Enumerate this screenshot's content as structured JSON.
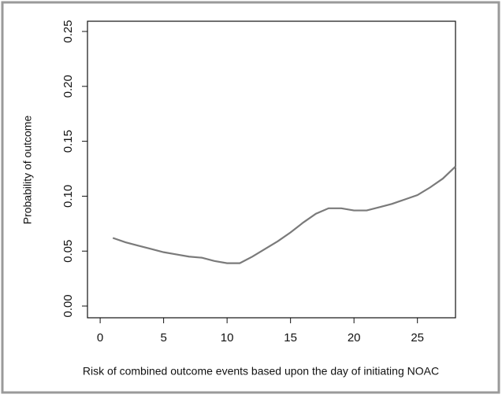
{
  "chart_data": {
    "type": "line",
    "x_label": "Risk of combined outcome events based upon the day of initiating NOAC",
    "y_label": "Probability of outcome",
    "x": [
      1,
      2,
      3,
      4,
      5,
      6,
      7,
      8,
      9,
      10,
      11,
      12,
      13,
      14,
      15,
      16,
      17,
      18,
      19,
      20,
      21,
      22,
      23,
      24,
      25,
      26,
      27,
      28
    ],
    "series": [
      {
        "color": "#7a7a7a",
        "values": [
          0.062,
          0.058,
          0.055,
          0.052,
          0.049,
          0.047,
          0.045,
          0.044,
          0.041,
          0.039,
          0.039,
          0.045,
          0.052,
          0.059,
          0.067,
          0.076,
          0.084,
          0.089,
          0.089,
          0.087,
          0.087,
          0.09,
          0.093,
          0.097,
          0.101,
          0.108,
          0.116,
          0.127
        ]
      }
    ],
    "xlim": [
      -1,
      28
    ],
    "xticks": [
      0,
      5,
      10,
      15,
      20,
      25
    ],
    "ylim": [
      -0.0107,
      0.2593
    ],
    "yticks": [
      {
        "value": 0,
        "label": "0.00"
      },
      0.05,
      {
        "value": 0.1,
        "label": "0.10"
      },
      0.15,
      {
        "value": 0.2,
        "label": "0.20"
      },
      0.25
    ]
  }
}
